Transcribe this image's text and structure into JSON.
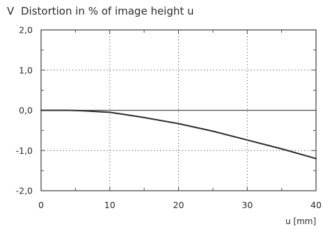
{
  "chart_data": {
    "type": "line",
    "title": "Distortion in % of image height u",
    "ylabel": "V",
    "xlabel": "u [mm]",
    "xlim": [
      0,
      40
    ],
    "ylim": [
      -2.0,
      2.0
    ],
    "x_ticks": [
      0,
      10,
      20,
      30,
      40
    ],
    "x_tick_labels": [
      "0",
      "10",
      "20",
      "30",
      "40"
    ],
    "y_ticks": [
      2.0,
      1.0,
      0.0,
      -1.0,
      -2.0
    ],
    "y_tick_labels": [
      "2,0",
      "1,0",
      "0,0",
      "-1,0",
      "-2,0"
    ],
    "grid": "dotted",
    "series": [
      {
        "color": "#2b2b2b",
        "x": [
          0,
          4,
          6,
          8,
          10,
          12,
          15,
          20,
          25,
          30,
          35,
          40
        ],
        "y": [
          0.0,
          0.0,
          -0.01,
          -0.03,
          -0.05,
          -0.1,
          -0.18,
          -0.33,
          -0.52,
          -0.74,
          -0.96,
          -1.2
        ]
      }
    ]
  }
}
